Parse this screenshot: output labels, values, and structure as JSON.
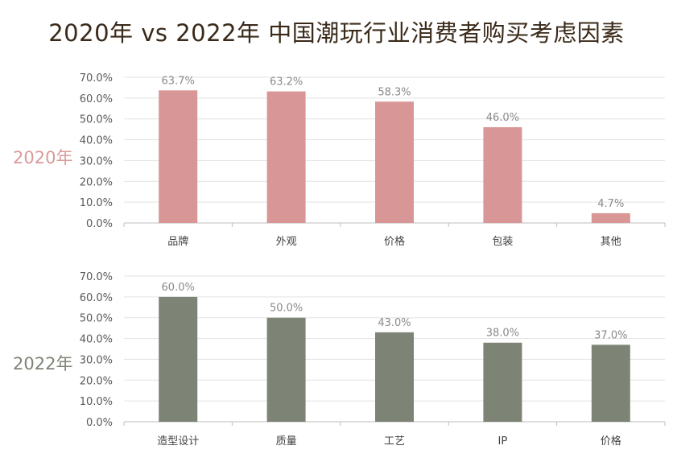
{
  "title": "2020年 vs 2022年 中国潮玩行业消费者购买考虑因素",
  "chart_data": [
    {
      "type": "bar",
      "label": "2020年",
      "color": "#d99696",
      "categories": [
        "品牌",
        "外观",
        "价格",
        "包装",
        "其他"
      ],
      "values": [
        63.7,
        63.2,
        58.3,
        46.0,
        4.7
      ],
      "data_labels": [
        "63.7%",
        "63.2%",
        "58.3%",
        "46.0%",
        "4.7%"
      ],
      "yticks": [
        "0.0%",
        "10.0%",
        "20.0%",
        "30.0%",
        "40.0%",
        "50.0%",
        "60.0%",
        "70.0%"
      ],
      "ylim": [
        0,
        70
      ],
      "grid": true
    },
    {
      "type": "bar",
      "label": "2022年",
      "color": "#7d8475",
      "categories": [
        "造型设计",
        "质量",
        "工艺",
        "IP",
        "价格"
      ],
      "values": [
        60.0,
        50.0,
        43.0,
        38.0,
        37.0
      ],
      "data_labels": [
        "60.0%",
        "50.0%",
        "43.0%",
        "38.0%",
        "37.0%"
      ],
      "yticks": [
        "0.0%",
        "10.0%",
        "20.0%",
        "30.0%",
        "40.0%",
        "50.0%",
        "60.0%",
        "70.0%"
      ],
      "ylim": [
        0,
        70
      ],
      "grid": true
    }
  ]
}
